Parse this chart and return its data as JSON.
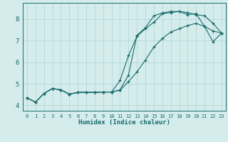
{
  "xlabel": "Humidex (Indice chaleur)",
  "bg_color": "#d4ecec",
  "grid_color": "#b0d4d4",
  "line_color": "#1a6b6b",
  "xlim": [
    -0.5,
    23.5
  ],
  "ylim": [
    3.75,
    8.75
  ],
  "xticks": [
    0,
    1,
    2,
    3,
    4,
    5,
    6,
    7,
    8,
    9,
    10,
    11,
    12,
    13,
    14,
    15,
    16,
    17,
    18,
    19,
    20,
    21,
    22,
    23
  ],
  "yticks": [
    4,
    5,
    6,
    7,
    8
  ],
  "line1_x": [
    0,
    1,
    2,
    3,
    4,
    5,
    6,
    7,
    8,
    9,
    10,
    11,
    12,
    13,
    14,
    15,
    16,
    17,
    18,
    19,
    20,
    21,
    22,
    23
  ],
  "line1_y": [
    4.35,
    4.15,
    4.55,
    4.78,
    4.72,
    4.52,
    4.6,
    4.6,
    4.6,
    4.62,
    4.62,
    4.7,
    5.1,
    5.55,
    6.1,
    6.7,
    7.1,
    7.4,
    7.55,
    7.7,
    7.8,
    7.65,
    7.45,
    7.35
  ],
  "line2_x": [
    0,
    1,
    2,
    3,
    4,
    5,
    6,
    7,
    8,
    9,
    10,
    11,
    12,
    13,
    14,
    15,
    16,
    17,
    18,
    19,
    20,
    21,
    22,
    23
  ],
  "line2_y": [
    4.35,
    4.15,
    4.55,
    4.78,
    4.72,
    4.52,
    4.6,
    4.6,
    4.6,
    4.62,
    4.62,
    5.15,
    6.3,
    7.2,
    7.55,
    7.85,
    8.25,
    8.3,
    8.35,
    8.3,
    8.2,
    8.15,
    7.8,
    7.35
  ],
  "line3_x": [
    0,
    1,
    2,
    3,
    4,
    5,
    6,
    7,
    8,
    9,
    10,
    11,
    12,
    13,
    14,
    15,
    16,
    17,
    18,
    19,
    20,
    21,
    22,
    23
  ],
  "line3_y": [
    4.35,
    4.15,
    4.55,
    4.78,
    4.72,
    4.52,
    4.6,
    4.6,
    4.6,
    4.62,
    4.62,
    4.72,
    5.4,
    7.25,
    7.6,
    8.15,
    8.28,
    8.35,
    8.35,
    8.2,
    8.25,
    7.65,
    6.95,
    7.35
  ]
}
